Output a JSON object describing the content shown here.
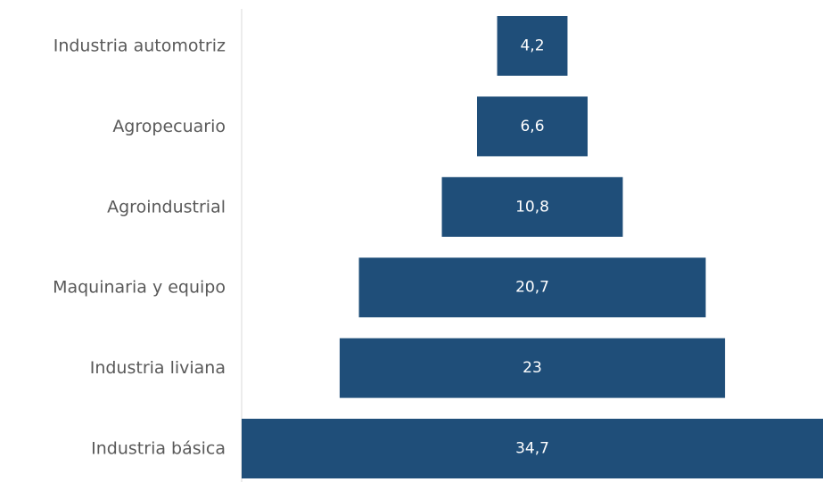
{
  "chart_data": {
    "type": "bar",
    "orientation": "horizontal",
    "layout": "centered-funnel",
    "categories": [
      "Industria automotriz",
      "Agropecuario",
      "Agroindustrial",
      "Maquinaria y equipo",
      "Industria liviana",
      "Industria básica"
    ],
    "values": [
      4.2,
      6.6,
      10.8,
      20.7,
      23,
      34.7
    ],
    "value_labels": [
      "4,2",
      "6,6",
      "10,8",
      "20,7",
      "23",
      "34,7"
    ],
    "title": "",
    "xlabel": "",
    "ylabel": "",
    "grid": false,
    "colors": {
      "bar": "#1f4e79",
      "value_text": "#ffffff",
      "category_text": "#595959",
      "axis": "#d9d9d9"
    }
  }
}
